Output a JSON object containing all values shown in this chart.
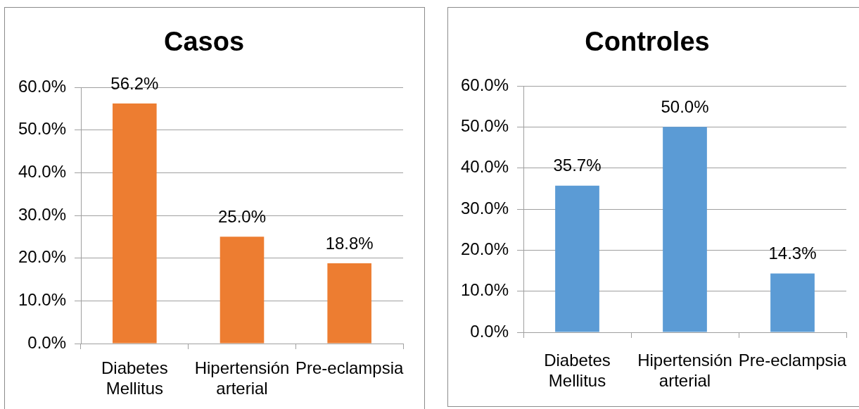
{
  "chart_data": [
    {
      "type": "bar",
      "title": "Casos",
      "categories": [
        "Diabetes Mellitus",
        "Hipertensión arterial",
        "Pre-eclampsia"
      ],
      "values": [
        56.2,
        25.0,
        18.8
      ],
      "color": "#ed7d31",
      "value_labels": [
        "56.2%",
        "25.0%",
        "18.8%"
      ],
      "ylim": [
        0,
        60
      ],
      "yticks": [
        {
          "value": 0,
          "label": "0.0%"
        },
        {
          "value": 10,
          "label": "10.0%"
        },
        {
          "value": 20,
          "label": "20.0%"
        },
        {
          "value": 30,
          "label": "30.0%"
        },
        {
          "value": 40,
          "label": "40.0%"
        },
        {
          "value": 50,
          "label": "50.0%"
        },
        {
          "value": 60,
          "label": "60.0%"
        }
      ],
      "grid": "y"
    },
    {
      "type": "bar",
      "title": "Controles",
      "categories": [
        "Diabetes Mellitus",
        "Hipertensión arterial",
        "Pre-eclampsia"
      ],
      "values": [
        35.7,
        50.0,
        14.3
      ],
      "color": "#5b9bd5",
      "value_labels": [
        "35.7%",
        "50.0%",
        "14.3%"
      ],
      "ylim": [
        0,
        60
      ],
      "yticks": [
        {
          "value": 0,
          "label": "0.0%"
        },
        {
          "value": 10,
          "label": "10.0%"
        },
        {
          "value": 20,
          "label": "20.0%"
        },
        {
          "value": 30,
          "label": "30.0%"
        },
        {
          "value": 40,
          "label": "40.0%"
        },
        {
          "value": 50,
          "label": "50.0%"
        },
        {
          "value": 60,
          "label": "60.0%"
        }
      ],
      "grid": "y"
    }
  ]
}
